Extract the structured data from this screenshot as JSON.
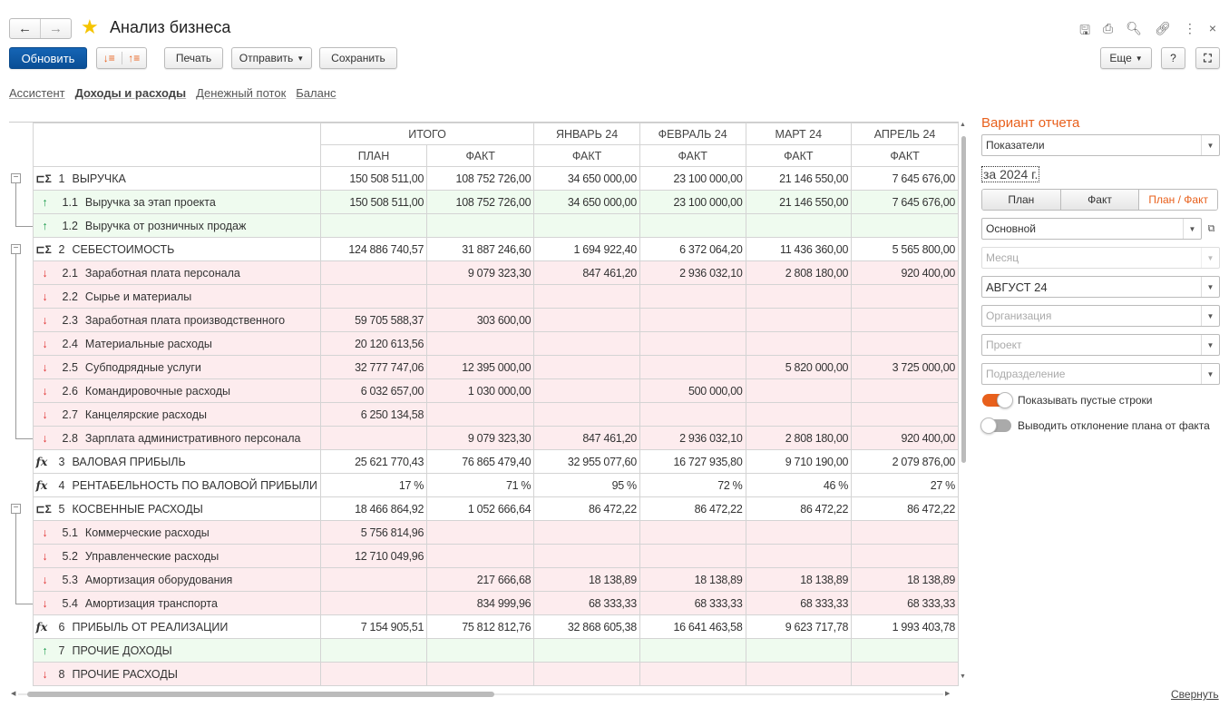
{
  "window": {
    "title": "Анализ бизнеса",
    "back": "←",
    "forward": "→"
  },
  "toolbar": {
    "refresh": "Обновить",
    "print": "Печать",
    "send": "Отправить",
    "save": "Сохранить",
    "more": "Еще",
    "help": "?"
  },
  "tabs": [
    {
      "label": "Ассистент",
      "active": false
    },
    {
      "label": "Доходы и расходы",
      "active": true
    },
    {
      "label": "Денежный поток",
      "active": false
    },
    {
      "label": "Баланс",
      "active": false
    }
  ],
  "table": {
    "group_header": "ИТОГО",
    "month_headers": [
      "ЯНВАРЬ 24",
      "ФЕВРАЛЬ 24",
      "МАРТ 24",
      "АПРЕЛЬ 24"
    ],
    "sub_headers": [
      "ПЛАН",
      "ФАКТ",
      "ФАКТ",
      "ФАКТ",
      "ФАКТ",
      "ФАКТ"
    ],
    "rows": [
      {
        "type": "group",
        "num": "1",
        "name": "ВЫРУЧКА",
        "values": [
          "150 508 511,00",
          "108 752 726,00",
          "34 650 000,00",
          "23 100 000,00",
          "21 146 550,00",
          "7 645 676,00"
        ]
      },
      {
        "type": "up",
        "num": "1.1",
        "name": "Выручка за этап проекта",
        "values": [
          "150 508 511,00",
          "108 752 726,00",
          "34 650 000,00",
          "23 100 000,00",
          "21 146 550,00",
          "7 645 676,00"
        ]
      },
      {
        "type": "up",
        "num": "1.2",
        "name": "Выручка от розничных продаж",
        "values": [
          "",
          "",
          "",
          "",
          "",
          ""
        ],
        "last": true
      },
      {
        "type": "group",
        "num": "2",
        "name": "СЕБЕСТОИМОСТЬ",
        "values": [
          "124 886 740,57",
          "31 887 246,60",
          "1 694 922,40",
          "6 372 064,20",
          "11 436 360,00",
          "5 565 800,00"
        ]
      },
      {
        "type": "down",
        "num": "2.1",
        "name": "Заработная плата персонала",
        "values": [
          "",
          "9 079 323,30",
          "847 461,20",
          "2 936 032,10",
          "2 808 180,00",
          "920 400,00"
        ]
      },
      {
        "type": "down",
        "num": "2.2",
        "name": "Сырье и материалы",
        "values": [
          "",
          "",
          "",
          "",
          "",
          ""
        ]
      },
      {
        "type": "down",
        "num": "2.3",
        "name": "Заработная плата производственного",
        "values": [
          "59 705 588,37",
          "303 600,00",
          "",
          "",
          "",
          ""
        ]
      },
      {
        "type": "down",
        "num": "2.4",
        "name": "Материальные расходы",
        "values": [
          "20 120 613,56",
          "",
          "",
          "",
          "",
          ""
        ]
      },
      {
        "type": "down",
        "num": "2.5",
        "name": "Субподрядные услуги",
        "values": [
          "32 777 747,06",
          "12 395 000,00",
          "",
          "",
          "5 820 000,00",
          "3 725 000,00"
        ]
      },
      {
        "type": "down",
        "num": "2.6",
        "name": "Командировочные расходы",
        "values": [
          "6 032 657,00",
          "1 030 000,00",
          "",
          "500 000,00",
          "",
          ""
        ]
      },
      {
        "type": "down",
        "num": "2.7",
        "name": "Канцелярские расходы",
        "values": [
          "6 250 134,58",
          "",
          "",
          "",
          "",
          ""
        ]
      },
      {
        "type": "down",
        "num": "2.8",
        "name": "Зарплата административного персонала",
        "values": [
          "",
          "9 079 323,30",
          "847 461,20",
          "2 936 032,10",
          "2 808 180,00",
          "920 400,00"
        ],
        "last": true
      },
      {
        "type": "fx",
        "num": "3",
        "name": "ВАЛОВАЯ ПРИБЫЛЬ",
        "values": [
          "25 621 770,43",
          "76 865 479,40",
          "32 955 077,60",
          "16 727 935,80",
          "9 710 190,00",
          "2 079 876,00"
        ]
      },
      {
        "type": "fx",
        "num": "4",
        "name": "РЕНТАБЕЛЬНОСТЬ ПО ВАЛОВОЙ ПРИБЫЛИ",
        "values": [
          "17 %",
          "71 %",
          "95 %",
          "72 %",
          "46 %",
          "27 %"
        ]
      },
      {
        "type": "group",
        "num": "5",
        "name": "КОСВЕННЫЕ РАСХОДЫ",
        "values": [
          "18 466 864,92",
          "1 052 666,64",
          "86 472,22",
          "86 472,22",
          "86 472,22",
          "86 472,22"
        ]
      },
      {
        "type": "down",
        "num": "5.1",
        "name": "Коммерческие расходы",
        "values": [
          "5 756 814,96",
          "",
          "",
          "",
          "",
          ""
        ]
      },
      {
        "type": "down",
        "num": "5.2",
        "name": "Управленческие расходы",
        "values": [
          "12 710 049,96",
          "",
          "",
          "",
          "",
          ""
        ]
      },
      {
        "type": "down",
        "num": "5.3",
        "name": "Амортизация оборудования",
        "values": [
          "",
          "217 666,68",
          "18 138,89",
          "18 138,89",
          "18 138,89",
          "18 138,89"
        ]
      },
      {
        "type": "down",
        "num": "5.4",
        "name": "Амортизация транспорта",
        "values": [
          "",
          "834 999,96",
          "68 333,33",
          "68 333,33",
          "68 333,33",
          "68 333,33"
        ],
        "last": true
      },
      {
        "type": "fx",
        "num": "6",
        "name": "ПРИБЫЛЬ ОТ РЕАЛИЗАЦИИ",
        "values": [
          "7 154 905,51",
          "75 812 812,76",
          "32 868 605,38",
          "16 641 463,58",
          "9 623 717,78",
          "1 993 403,78"
        ]
      },
      {
        "type": "up",
        "num": "7",
        "name": "ПРОЧИЕ ДОХОДЫ",
        "values": [
          "",
          "",
          "",
          "",
          "",
          ""
        ]
      },
      {
        "type": "down",
        "num": "8",
        "name": "ПРОЧИЕ РАСХОДЫ",
        "values": [
          "",
          "",
          "",
          "",
          "",
          ""
        ]
      }
    ]
  },
  "settings": {
    "variant_title": "Вариант отчета",
    "variant": "Показатели",
    "period": "за 2024 г.",
    "modes": [
      {
        "label": "План",
        "selected": false
      },
      {
        "label": "Факт",
        "selected": false
      },
      {
        "label": "План / Факт",
        "selected": true
      }
    ],
    "scenario": "Основной",
    "period_type_placeholder": "Месяц",
    "month": "АВГУСТ 24",
    "organization_placeholder": "Организация",
    "project_placeholder": "Проект",
    "department_placeholder": "Подразделение",
    "show_empty_label": "Показывать пустые строки",
    "show_empty": true,
    "show_deviation_label": "Выводить отклонение плана от факта",
    "show_deviation": false,
    "collapse": "Свернуть"
  },
  "colors": {
    "accent": "#e8601c",
    "primary": "#0a5aa8",
    "up": "#1a9a4a",
    "down": "#e03030"
  }
}
